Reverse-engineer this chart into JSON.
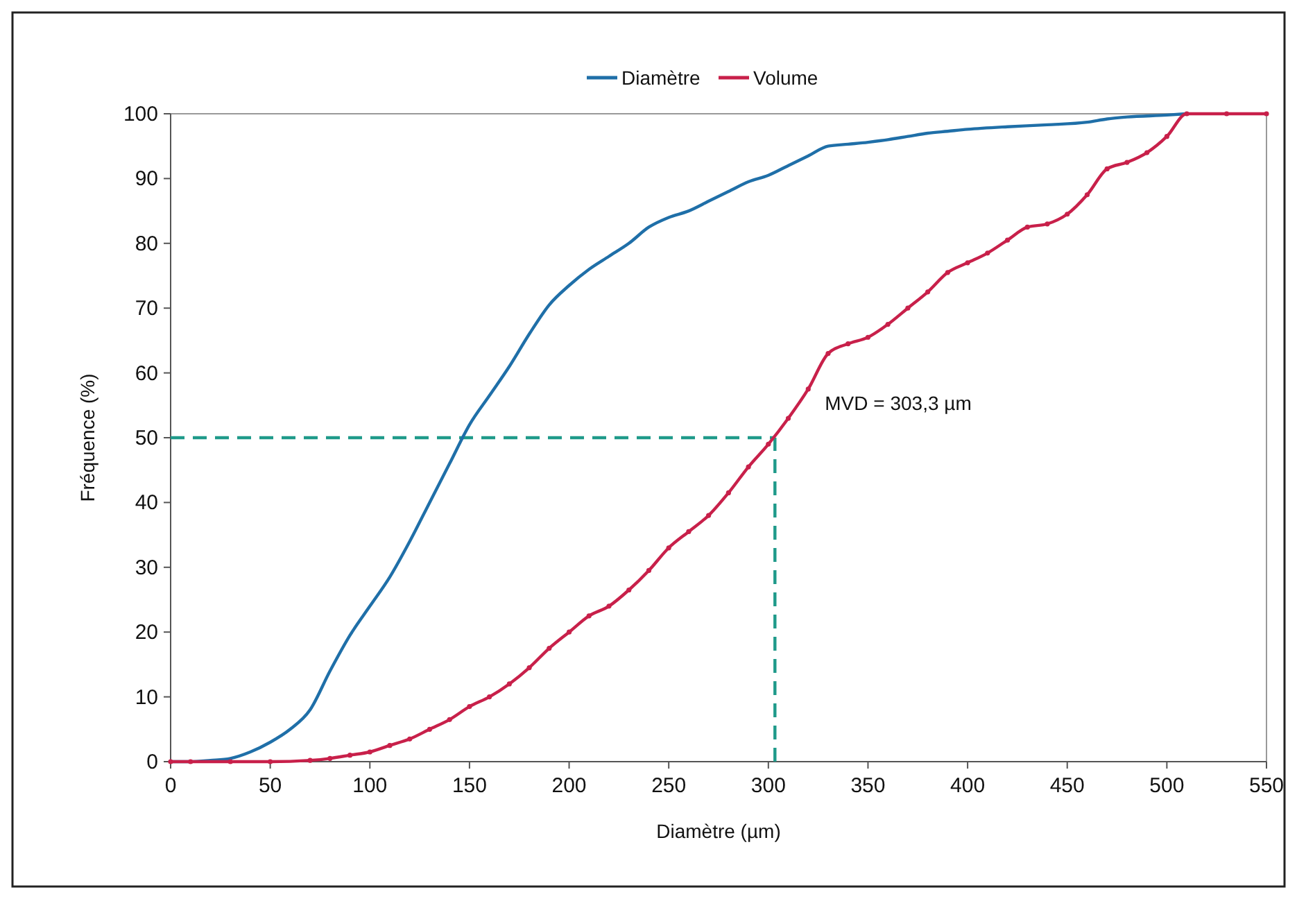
{
  "chart_data": {
    "type": "line",
    "xlabel": "Diamètre (µm)",
    "ylabel": "Fréquence (%)",
    "xlim": [
      0,
      550
    ],
    "xticks": [
      0,
      50,
      100,
      150,
      200,
      250,
      300,
      350,
      400,
      450,
      500,
      550
    ],
    "ylim": [
      0,
      100
    ],
    "yticks": [
      0,
      10,
      20,
      30,
      40,
      50,
      60,
      70,
      80,
      90,
      100
    ],
    "grid": false,
    "legend": "top",
    "line_style": "solid",
    "series": [
      {
        "name": "Diamètre",
        "color": "#1f6fa8",
        "marker": "none",
        "x": [
          0,
          10,
          20,
          30,
          40,
          50,
          60,
          70,
          80,
          90,
          100,
          110,
          120,
          130,
          140,
          150,
          160,
          170,
          180,
          190,
          200,
          210,
          220,
          230,
          240,
          250,
          260,
          270,
          280,
          290,
          300,
          310,
          320,
          330,
          340,
          350,
          360,
          370,
          380,
          390,
          400,
          420,
          440,
          460,
          470,
          480,
          500,
          510
        ],
        "values": [
          0,
          0,
          0.2,
          0.5,
          1.5,
          3,
          5,
          8,
          14,
          19.5,
          24,
          28.5,
          34,
          40,
          46,
          52,
          56.5,
          61,
          66,
          70.5,
          73.5,
          76,
          78,
          80,
          82.5,
          84,
          85,
          86.5,
          88,
          89.5,
          90.5,
          92,
          93.5,
          95,
          95.3,
          95.6,
          96,
          96.5,
          97,
          97.3,
          97.6,
          98,
          98.3,
          98.7,
          99.2,
          99.5,
          99.8,
          100
        ]
      },
      {
        "name": "Volume",
        "color": "#c8204a",
        "marker": "circle",
        "x": [
          0,
          10,
          30,
          50,
          70,
          80,
          90,
          100,
          110,
          120,
          130,
          140,
          150,
          160,
          170,
          180,
          190,
          200,
          210,
          220,
          230,
          240,
          250,
          260,
          270,
          280,
          290,
          300,
          310,
          320,
          330,
          340,
          350,
          360,
          370,
          380,
          390,
          400,
          410,
          420,
          430,
          440,
          450,
          460,
          470,
          480,
          490,
          500,
          510,
          530,
          550
        ],
        "values": [
          0,
          0,
          0,
          0,
          0.2,
          0.5,
          1,
          1.5,
          2.5,
          3.5,
          5,
          6.5,
          8.5,
          10,
          12,
          14.5,
          17.5,
          20,
          22.5,
          24,
          26.5,
          29.5,
          33,
          35.5,
          38,
          41.5,
          45.5,
          49,
          53,
          57.5,
          63,
          64.5,
          65.5,
          67.5,
          70,
          72.5,
          75.5,
          77,
          78.5,
          80.5,
          82.5,
          83,
          84.5,
          87.5,
          91.5,
          92.5,
          94,
          96.5,
          100,
          100,
          100
        ]
      }
    ],
    "ref_lines": [
      {
        "axis": "y",
        "value": 50,
        "color": "#1f9a8a",
        "line_style": "dashed"
      },
      {
        "axis": "x",
        "value": 303.3,
        "color": "#1f9a8a",
        "line_style": "dashed"
      }
    ],
    "annotations": [
      {
        "text": "MVD = 303,3  µm",
        "x": 303.3,
        "y": 50
      }
    ]
  }
}
